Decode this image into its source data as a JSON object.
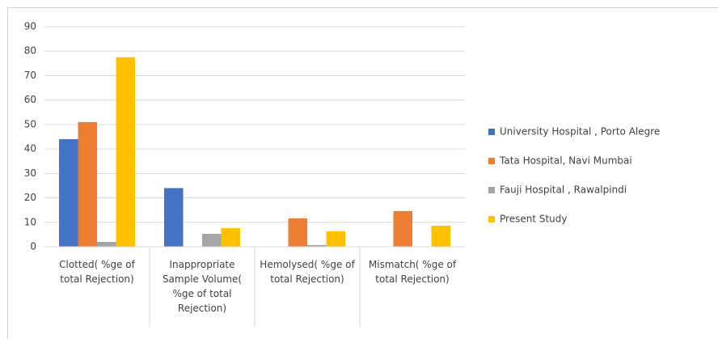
{
  "chart_data": {
    "type": "bar",
    "categories": [
      "Clotted( %ge of total Rejection)",
      "Inappropriate Sample Volume( %ge of total Rejection)",
      "Hemolysed( %ge of total Rejection)",
      "Mismatch( %ge of total Rejection)"
    ],
    "series": [
      {
        "name": "University Hospital , Porto Alegre",
        "color": "#4472c4",
        "values": [
          44,
          24,
          0,
          0
        ]
      },
      {
        "name": "Tata Hospital, Navi Mumbai",
        "color": "#ed7d31",
        "values": [
          51,
          0,
          11.6,
          14.6
        ]
      },
      {
        "name": "Fauji Hospital , Rawalpindi",
        "color": "#a5a5a5",
        "values": [
          2,
          5.3,
          0.7,
          0
        ]
      },
      {
        "name": "Present Study",
        "color": "#ffc000",
        "values": [
          77.5,
          7.6,
          6.3,
          8.6
        ]
      }
    ],
    "ylim": [
      0,
      90
    ],
    "yticks": [
      0,
      10,
      20,
      30,
      40,
      50,
      60,
      70,
      80,
      90
    ],
    "grid": true,
    "legend": "right"
  }
}
